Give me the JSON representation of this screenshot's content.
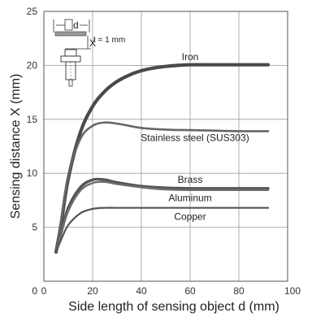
{
  "chart_data": {
    "type": "line",
    "xlabel": "Side length of sensing object d (mm)",
    "ylabel": "Sensing distance X (mm)",
    "xlim": [
      0,
      100
    ],
    "ylim": [
      0,
      25
    ],
    "xticks": [
      0,
      20,
      40,
      60,
      80,
      100
    ],
    "yticks": [
      5,
      10,
      15,
      20,
      25
    ],
    "grid": true,
    "series": [
      {
        "name": "Iron",
        "color": "#4a4a4a",
        "x": [
          5,
          7,
          10,
          15,
          20,
          25,
          30,
          35,
          40,
          45,
          50,
          55,
          60,
          70,
          80,
          92
        ],
        "y": [
          2.7,
          5.2,
          9.5,
          13.8,
          16.2,
          17.6,
          18.5,
          19.1,
          19.5,
          19.75,
          19.9,
          20.0,
          20.05,
          20.05,
          20.05,
          20.05
        ]
      },
      {
        "name": "Stainless steel (SUS303)",
        "color": "#666666",
        "x": [
          5,
          7,
          10,
          15,
          20,
          25,
          30,
          35,
          40,
          50,
          60,
          70,
          80,
          92
        ],
        "y": [
          2.7,
          5.5,
          9.8,
          13.2,
          14.4,
          14.7,
          14.6,
          14.4,
          14.2,
          14.05,
          14.0,
          13.95,
          13.9,
          13.9
        ]
      },
      {
        "name": "Brass",
        "color": "#555555",
        "x": [
          5,
          7,
          10,
          15,
          20,
          25,
          30,
          40,
          50,
          60,
          70,
          80,
          92
        ],
        "y": [
          2.7,
          4.4,
          6.8,
          8.7,
          9.4,
          9.4,
          9.15,
          8.8,
          8.65,
          8.6,
          8.6,
          8.6,
          8.6
        ]
      },
      {
        "name": "Aluminum",
        "color": "#6e6e6e",
        "x": [
          5,
          7,
          10,
          15,
          20,
          25,
          30,
          40,
          50,
          60,
          70,
          80,
          92
        ],
        "y": [
          2.7,
          4.3,
          6.5,
          8.4,
          9.1,
          9.2,
          9.0,
          8.7,
          8.5,
          8.45,
          8.45,
          8.45,
          8.45
        ]
      },
      {
        "name": "Copper",
        "color": "#555555",
        "x": [
          5,
          7,
          10,
          15,
          20,
          25,
          30,
          40,
          50,
          60,
          70,
          80,
          92
        ],
        "y": [
          2.7,
          3.8,
          5.2,
          6.3,
          6.7,
          6.8,
          6.8,
          6.8,
          6.8,
          6.8,
          6.8,
          6.8,
          6.8
        ]
      }
    ],
    "labels": [
      {
        "text": "Iron",
        "x": 60,
        "y": 20.8
      },
      {
        "text": "Stainless steel (SUS303)",
        "x": 62,
        "y": 13.3
      },
      {
        "text": "Brass",
        "x": 60,
        "y": 9.4
      },
      {
        "text": "Aluminum",
        "x": 60,
        "y": 7.7
      },
      {
        "text": "Copper",
        "x": 60,
        "y": 6.0
      }
    ],
    "annotation": {
      "label_d": "d",
      "label_x": "X",
      "label_t": "t = 1 mm"
    }
  }
}
